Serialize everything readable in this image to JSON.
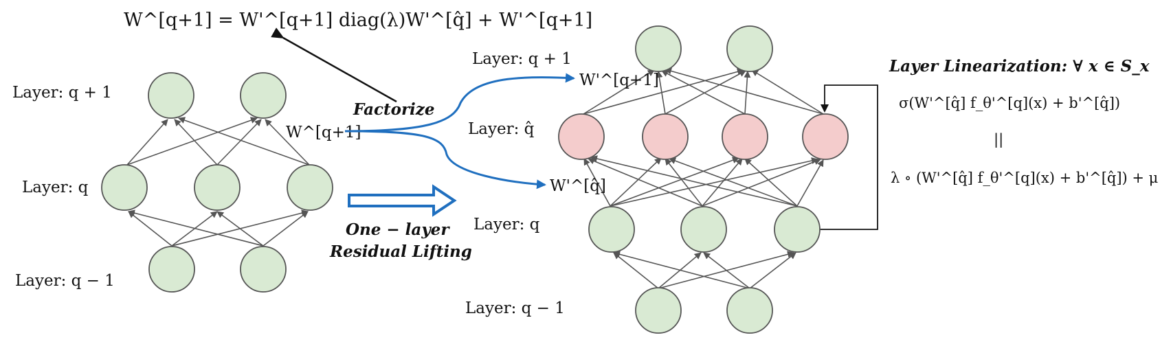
{
  "factorization_equation": "W^[q+1] = W'^[q+1] diag(λ)W'^[q̂] + W'^[q+1]",
  "left_network": {
    "label_top": "Layer: q + 1",
    "label_mid": "Layer: q",
    "label_bottom": "Layer: q − 1",
    "weight_label": "W^[q+1]"
  },
  "right_network": {
    "label_top": "Layer: q + 1",
    "label_hat": "Layer: q̂",
    "label_mid": "Layer: q",
    "label_bottom": "Layer: q − 1",
    "weight_top": "W'^[q+1]",
    "weight_bottom": "W'^[q̂]"
  },
  "factorize_label": "Factorize",
  "lifting_label_line1": "One − layer",
  "lifting_label_line2": "Residual Lifting",
  "linearization": {
    "title": "Layer Linearization: ∀ x ∈ S_x",
    "line1": "σ(W'^[q̂] f_θ'^[q](x) + b'^[q̂])",
    "equals": "||",
    "line2": "λ ∘ (W'^[q̂] f_θ'^[q](x) + b'^[q̂]) + μ"
  },
  "colors": {
    "node_green": "#d9ead3",
    "node_red": "#f4cccc",
    "edge": "#555555",
    "curve_blue": "#1f6fbf",
    "hollow_arrow_blue": "#1f6fbf"
  }
}
